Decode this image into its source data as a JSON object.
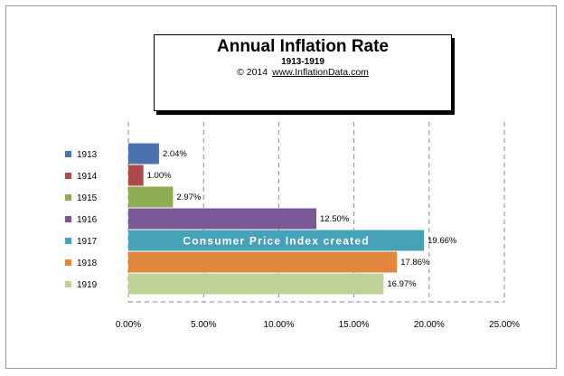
{
  "chart_data": {
    "type": "bar",
    "orientation": "horizontal",
    "title": "Annual  Inflation Rate",
    "subtitle": "1913-1919",
    "credit": {
      "copyright": "© 2014",
      "url": "www.InflationData.com"
    },
    "categories": [
      "1913",
      "1914",
      "1915",
      "1916",
      "1917",
      "1918",
      "1919"
    ],
    "values": [
      2.04,
      1.0,
      2.97,
      12.5,
      19.66,
      17.86,
      16.97
    ],
    "data_labels": [
      "2.04%",
      "1.00%",
      "2.97%",
      "12.50%",
      "19.66%",
      "17.86%",
      "16.97%"
    ],
    "colors": [
      "#4a73ad",
      "#b04a4a",
      "#8eac52",
      "#7a5898",
      "#45a2b8",
      "#e2863e",
      "#bed196"
    ],
    "xlim": [
      0,
      25
    ],
    "x_ticks": [
      0,
      5,
      10,
      15,
      20,
      25
    ],
    "x_tick_labels": [
      "0.00%",
      "5.00%",
      "10.00%",
      "15.00%",
      "20.00%",
      "25.00%"
    ],
    "grid": "vertical dashed",
    "legend": "left",
    "annotations": [
      {
        "category": "1917",
        "text": "Consumer Price Index created"
      }
    ],
    "xlabel": "",
    "ylabel": ""
  }
}
